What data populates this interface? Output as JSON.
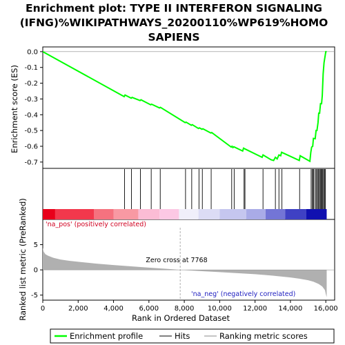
{
  "chart_data": {
    "type": "line",
    "title": "Enrichment plot: TYPE II INTERFERON SIGNALING (IFNG)%WIKIPATHWAYS_20200110%WP619%HOMO SAPIENS",
    "title_lines": [
      "Enrichment plot: TYPE II INTERFERON SIGNALING",
      "(IFNG)%WIKIPATHWAYS_20200110%WP619%HOMO",
      "SAPIENS"
    ],
    "xlabel": "Rank in Ordered Dataset",
    "xlim": [
      0,
      16500
    ],
    "x_ticks": [
      0,
      2000,
      4000,
      6000,
      8000,
      10000,
      12000,
      14000,
      16000
    ],
    "x_tick_labels": [
      "0",
      "2,000",
      "4,000",
      "6,000",
      "8,000",
      "10,000",
      "12,000",
      "14,000",
      "16,000"
    ],
    "es_panel": {
      "ylabel": "Enrichment score (ES)",
      "ylim": [
        -0.74,
        0.03
      ],
      "y_ticks": [
        0.0,
        -0.1,
        -0.2,
        -0.3,
        -0.4,
        -0.5,
        -0.6,
        -0.7
      ],
      "y_tick_labels": [
        "0.0",
        "-0.1",
        "-0.2",
        "-0.3",
        "-0.4",
        "-0.5",
        "-0.6",
        "-0.7"
      ],
      "series": [
        {
          "name": "Enrichment profile",
          "color": "#00ff00",
          "x": [
            0,
            4600,
            4650,
            5000,
            5050,
            5500,
            5550,
            6100,
            6150,
            6600,
            6650,
            8050,
            8100,
            8400,
            8450,
            8800,
            8850,
            9000,
            9050,
            9500,
            9550,
            10650,
            10700,
            10750,
            10800,
            11300,
            11350,
            11400,
            12400,
            12450,
            12900,
            13050,
            13150,
            13250,
            13350,
            13450,
            13500,
            14500,
            14550,
            15100,
            15150,
            15200,
            15260,
            15300,
            15400,
            15450,
            15500,
            15560,
            15600,
            15650,
            15700,
            15760,
            15800,
            15850,
            15900,
            16000,
            16050
          ],
          "y": [
            0.0,
            -0.285,
            -0.275,
            -0.295,
            -0.29,
            -0.31,
            -0.305,
            -0.337,
            -0.333,
            -0.357,
            -0.353,
            -0.45,
            -0.447,
            -0.467,
            -0.463,
            -0.487,
            -0.483,
            -0.492,
            -0.489,
            -0.516,
            -0.513,
            -0.605,
            -0.6,
            -0.608,
            -0.603,
            -0.63,
            -0.612,
            -0.615,
            -0.67,
            -0.655,
            -0.685,
            -0.69,
            -0.67,
            -0.68,
            -0.655,
            -0.66,
            -0.638,
            -0.69,
            -0.66,
            -0.695,
            -0.64,
            -0.605,
            -0.6,
            -0.55,
            -0.552,
            -0.5,
            -0.5,
            -0.45,
            -0.39,
            -0.39,
            -0.33,
            -0.33,
            -0.28,
            -0.14,
            -0.07,
            0.0,
            0.0
          ]
        }
      ]
    },
    "hits": {
      "name": "Hits",
      "positions": [
        4620,
        5010,
        5520,
        6130,
        6640,
        8070,
        8420,
        8830,
        9020,
        9520,
        10680,
        10820,
        11380,
        11430,
        12450,
        13150,
        13350,
        13520,
        14520,
        15170,
        15230,
        15290,
        15330,
        15420,
        15480,
        15530,
        15590,
        15640,
        15690,
        15740,
        15790,
        15830,
        15880,
        15930,
        15980
      ]
    },
    "ranking_panel": {
      "ylabel": "Ranked list metric (PreRanked)",
      "ylim": [
        -6,
        10
      ],
      "y_ticks": [
        5,
        0,
        -5
      ],
      "y_tick_labels": [
        "5",
        "0",
        "-5"
      ],
      "series": [
        {
          "name": "Ranking metric scores",
          "color": "#b0b0b0",
          "x": [
            0,
            50,
            150,
            300,
            600,
            1000,
            1500,
            2000,
            3000,
            4000,
            5000,
            6000,
            7000,
            7768,
            9000,
            10000,
            11000,
            12000,
            13000,
            14000,
            14500,
            15000,
            15300,
            15600,
            15800,
            15950,
            16000,
            16050
          ],
          "y": [
            4.4,
            3.6,
            3.1,
            2.8,
            2.4,
            2.05,
            1.8,
            1.6,
            1.25,
            0.95,
            0.7,
            0.45,
            0.2,
            0.0,
            -0.25,
            -0.45,
            -0.65,
            -0.85,
            -1.15,
            -1.5,
            -1.75,
            -2.05,
            -2.35,
            -2.8,
            -3.3,
            -4.0,
            -4.8,
            -5.4
          ]
        }
      ],
      "zero_cross_label": "Zero cross at 7768",
      "zero_cross": 7768,
      "na_pos_label": "'na_pos' (positively correlated)",
      "na_neg_label": "'na_neg' (negatively correlated)"
    },
    "heat_bar": {
      "segments": [
        {
          "x0": 0,
          "x1": 700,
          "color": "#e8001a"
        },
        {
          "x0": 700,
          "x1": 2900,
          "color": "#f2384c"
        },
        {
          "x0": 2900,
          "x1": 4000,
          "color": "#f5727f"
        },
        {
          "x0": 4000,
          "x1": 5400,
          "color": "#f899a3"
        },
        {
          "x0": 5400,
          "x1": 6600,
          "color": "#fbbcd5"
        },
        {
          "x0": 6600,
          "x1": 7700,
          "color": "#fcc8e4"
        },
        {
          "x0": 7700,
          "x1": 8800,
          "color": "#f0effa"
        },
        {
          "x0": 8800,
          "x1": 10000,
          "color": "#dcdcf5"
        },
        {
          "x0": 10000,
          "x1": 11500,
          "color": "#c5c6ef"
        },
        {
          "x0": 11500,
          "x1": 12600,
          "color": "#a9abe7"
        },
        {
          "x0": 12600,
          "x1": 13700,
          "color": "#7375d6"
        },
        {
          "x0": 13700,
          "x1": 14900,
          "color": "#3f41c4"
        },
        {
          "x0": 14900,
          "x1": 16050,
          "color": "#1010b0"
        }
      ]
    },
    "legend": [
      {
        "name": "Enrichment profile",
        "color": "#00ff00"
      },
      {
        "name": "Hits",
        "color": "#000000"
      },
      {
        "name": "Ranking metric scores",
        "color": "#b0b0b0"
      }
    ],
    "legend_position": "bottom",
    "grid": false
  }
}
